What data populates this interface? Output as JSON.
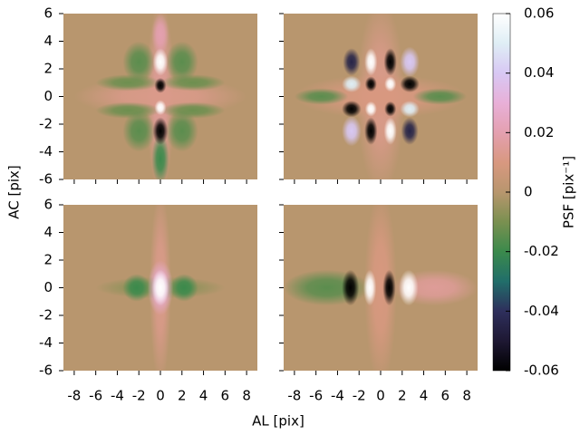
{
  "figure": {
    "xlabel": "AL [pix]",
    "ylabel": "AC [pix]",
    "colorbar": {
      "label": "PSF [pix⁻¹]",
      "lim": [
        -0.06,
        0.06
      ],
      "ticks": [
        -0.06,
        -0.04,
        -0.02,
        0,
        0.02,
        0.04,
        0.06
      ],
      "colors": [
        "#000000",
        "#1e1833",
        "#2e2f5c",
        "#216e6a",
        "#3b8a4c",
        "#7a9050",
        "#b8966e",
        "#d89880",
        "#e4a0b0",
        "#e8b0d8",
        "#d8c8f4",
        "#dfeef5",
        "#ffffff"
      ]
    }
  },
  "chart_data": [
    {
      "type": "heatmap",
      "xlim": [
        -9,
        9
      ],
      "ylim": [
        -6,
        6
      ],
      "xticks": [
        -8,
        -6,
        -4,
        -2,
        0,
        2,
        4,
        6,
        8
      ],
      "yticks": [
        -6,
        -4,
        -2,
        0,
        2,
        4,
        6
      ],
      "xticklabels": false,
      "yticklabels": true,
      "background": 0,
      "features": [
        {
          "x": 0,
          "y": 0,
          "rx": 1.3,
          "ry": 7,
          "v": 0.015
        },
        {
          "x": 0,
          "y": 0,
          "rx": 8,
          "ry": 1.4,
          "v": 0.012
        },
        {
          "x": -3,
          "y": 1,
          "rx": 3,
          "ry": 0.6,
          "v": -0.012
        },
        {
          "x": 3,
          "y": 1,
          "rx": 3,
          "ry": 0.6,
          "v": -0.012
        },
        {
          "x": -3,
          "y": -1,
          "rx": 3,
          "ry": 0.6,
          "v": -0.012
        },
        {
          "x": 3,
          "y": -1,
          "rx": 3,
          "ry": 0.6,
          "v": -0.012
        },
        {
          "x": -2,
          "y": 2.5,
          "rx": 1.5,
          "ry": 1.5,
          "v": -0.015
        },
        {
          "x": 2,
          "y": 2.5,
          "rx": 1.5,
          "ry": 1.5,
          "v": -0.015
        },
        {
          "x": -2,
          "y": -2.5,
          "rx": 1.5,
          "ry": 1.5,
          "v": -0.015
        },
        {
          "x": 2,
          "y": -2.5,
          "rx": 1.5,
          "ry": 1.5,
          "v": -0.015
        },
        {
          "x": 0,
          "y": 4.5,
          "rx": 0.8,
          "ry": 1.5,
          "v": 0.02
        },
        {
          "x": 0,
          "y": -4.5,
          "rx": 0.8,
          "ry": 1.8,
          "v": -0.02
        },
        {
          "x": 0,
          "y": 2.5,
          "rx": 0.7,
          "ry": 1,
          "v": 0.06
        },
        {
          "x": 0,
          "y": 0.8,
          "rx": 0.55,
          "ry": 0.55,
          "v": -0.06
        },
        {
          "x": 0,
          "y": -0.8,
          "rx": 0.55,
          "ry": 0.55,
          "v": 0.06
        },
        {
          "x": 0,
          "y": -2.5,
          "rx": 0.7,
          "ry": 1,
          "v": -0.06
        }
      ]
    },
    {
      "type": "heatmap",
      "xlim": [
        -9,
        9
      ],
      "ylim": [
        -6,
        6
      ],
      "xticks": [
        -8,
        -6,
        -4,
        -2,
        0,
        2,
        4,
        6,
        8
      ],
      "yticks": [
        -6,
        -4,
        -2,
        0,
        2,
        4,
        6
      ],
      "xticklabels": false,
      "yticklabels": false,
      "background": 0,
      "features": [
        {
          "x": 0,
          "y": 0,
          "rx": 2.2,
          "ry": 7,
          "v": 0.012
        },
        {
          "x": 0,
          "y": 0,
          "rx": 8,
          "ry": 1.6,
          "v": 0.01
        },
        {
          "x": -5.5,
          "y": 0,
          "rx": 2.5,
          "ry": 0.6,
          "v": -0.015
        },
        {
          "x": 5.5,
          "y": 0,
          "rx": 2.5,
          "ry": 0.6,
          "v": -0.015
        },
        {
          "x": -2.7,
          "y": 2.5,
          "rx": 0.8,
          "ry": 1,
          "v": -0.045
        },
        {
          "x": -0.9,
          "y": 2.5,
          "rx": 0.6,
          "ry": 1,
          "v": 0.06
        },
        {
          "x": 0.9,
          "y": 2.5,
          "rx": 0.6,
          "ry": 1,
          "v": -0.06
        },
        {
          "x": 2.7,
          "y": 2.5,
          "rx": 0.9,
          "ry": 1.1,
          "v": 0.04
        },
        {
          "x": -2.7,
          "y": 0.9,
          "rx": 0.9,
          "ry": 0.6,
          "v": 0.05
        },
        {
          "x": -0.9,
          "y": 0.9,
          "rx": 0.55,
          "ry": 0.55,
          "v": -0.06
        },
        {
          "x": 0.9,
          "y": 0.9,
          "rx": 0.55,
          "ry": 0.55,
          "v": 0.06
        },
        {
          "x": 2.7,
          "y": 0.9,
          "rx": 0.9,
          "ry": 0.6,
          "v": -0.06
        },
        {
          "x": -2.7,
          "y": -0.9,
          "rx": 0.9,
          "ry": 0.6,
          "v": -0.06
        },
        {
          "x": -0.9,
          "y": -0.9,
          "rx": 0.55,
          "ry": 0.55,
          "v": 0.06
        },
        {
          "x": 0.9,
          "y": -0.9,
          "rx": 0.55,
          "ry": 0.55,
          "v": -0.06
        },
        {
          "x": 2.7,
          "y": -0.9,
          "rx": 0.9,
          "ry": 0.6,
          "v": 0.05
        },
        {
          "x": -2.7,
          "y": -2.5,
          "rx": 0.9,
          "ry": 1.1,
          "v": 0.04
        },
        {
          "x": -0.9,
          "y": -2.5,
          "rx": 0.6,
          "ry": 1,
          "v": -0.06
        },
        {
          "x": 0.9,
          "y": -2.5,
          "rx": 0.6,
          "ry": 1,
          "v": 0.06
        },
        {
          "x": 2.7,
          "y": -2.5,
          "rx": 0.8,
          "ry": 1,
          "v": -0.045
        }
      ]
    },
    {
      "type": "heatmap",
      "xlim": [
        -9,
        9
      ],
      "ylim": [
        -6,
        6
      ],
      "xticks": [
        -8,
        -6,
        -4,
        -2,
        0,
        2,
        4,
        6,
        8
      ],
      "yticks": [
        -6,
        -4,
        -2,
        0,
        2,
        4,
        6
      ],
      "xticklabels": true,
      "yticklabels": true,
      "background": 0,
      "features": [
        {
          "x": 0,
          "y": 0,
          "rx": 1,
          "ry": 7,
          "v": 0.012
        },
        {
          "x": 0,
          "y": 0,
          "rx": 6,
          "ry": 0.8,
          "v": -0.008
        },
        {
          "x": -2.2,
          "y": 0,
          "rx": 1.3,
          "ry": 1,
          "v": -0.02
        },
        {
          "x": 2.2,
          "y": 0,
          "rx": 1.3,
          "ry": 1,
          "v": -0.02
        },
        {
          "x": 0,
          "y": 0,
          "rx": 1.2,
          "ry": 2,
          "v": 0.03
        },
        {
          "x": 0,
          "y": 0,
          "rx": 0.8,
          "ry": 1.3,
          "v": 0.06
        }
      ]
    },
    {
      "type": "heatmap",
      "xlim": [
        -9,
        9
      ],
      "ylim": [
        -6,
        6
      ],
      "xticks": [
        -8,
        -6,
        -4,
        -2,
        0,
        2,
        4,
        6,
        8
      ],
      "yticks": [
        -6,
        -4,
        -2,
        0,
        2,
        4,
        6
      ],
      "xticklabels": true,
      "yticklabels": false,
      "background": 0,
      "features": [
        {
          "x": 0,
          "y": 0,
          "rx": 1.5,
          "ry": 7,
          "v": 0.01
        },
        {
          "x": -5,
          "y": 0,
          "rx": 4,
          "ry": 1.3,
          "v": -0.015
        },
        {
          "x": 5,
          "y": 0,
          "rx": 4,
          "ry": 1.3,
          "v": 0.015
        },
        {
          "x": -2.8,
          "y": 0,
          "rx": 0.8,
          "ry": 1.3,
          "v": -0.06
        },
        {
          "x": -1,
          "y": 0,
          "rx": 0.6,
          "ry": 1.3,
          "v": 0.06
        },
        {
          "x": 0.8,
          "y": 0,
          "rx": 0.6,
          "ry": 1.3,
          "v": -0.06
        },
        {
          "x": 2.6,
          "y": 0,
          "rx": 0.9,
          "ry": 1.3,
          "v": 0.06
        }
      ]
    }
  ]
}
